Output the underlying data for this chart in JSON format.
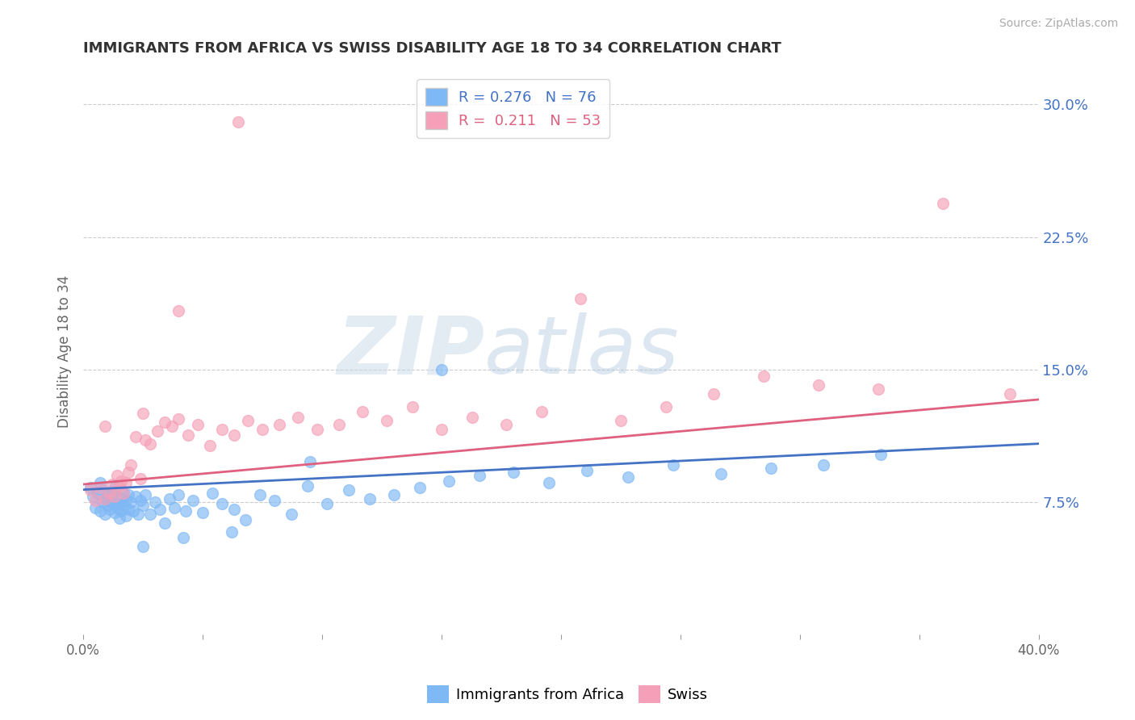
{
  "title": "IMMIGRANTS FROM AFRICA VS SWISS DISABILITY AGE 18 TO 34 CORRELATION CHART",
  "source": "Source: ZipAtlas.com",
  "ylabel": "Disability Age 18 to 34",
  "xlim": [
    0.0,
    0.4
  ],
  "ylim": [
    0.0,
    0.32
  ],
  "xticks": [
    0.0,
    0.05,
    0.1,
    0.15,
    0.2,
    0.25,
    0.3,
    0.35,
    0.4
  ],
  "xticklabels": [
    "0.0%",
    "",
    "",
    "",
    "",
    "",
    "",
    "",
    "40.0%"
  ],
  "yticks": [
    0.075,
    0.15,
    0.225,
    0.3
  ],
  "yticklabels": [
    "7.5%",
    "15.0%",
    "22.5%",
    "30.0%"
  ],
  "blue_color": "#7EB8F5",
  "pink_color": "#F5A0B8",
  "blue_line_color": "#4472C4",
  "pink_line_color": "#E06080",
  "r_blue": 0.276,
  "n_blue": 76,
  "r_pink": 0.211,
  "n_pink": 53,
  "legend_label_blue": "Immigrants from Africa",
  "legend_label_pink": "Swiss",
  "watermark_zip": "ZIP",
  "watermark_atlas": "atlas",
  "background_color": "#FFFFFF",
  "grid_color": "#CCCCCC",
  "title_color": "#333333",
  "tick_label_color_blue": "#4472C4",
  "blue_scatter_x": [
    0.003,
    0.004,
    0.005,
    0.006,
    0.007,
    0.007,
    0.008,
    0.008,
    0.009,
    0.009,
    0.01,
    0.01,
    0.011,
    0.011,
    0.012,
    0.012,
    0.013,
    0.013,
    0.014,
    0.014,
    0.015,
    0.015,
    0.016,
    0.016,
    0.017,
    0.017,
    0.018,
    0.018,
    0.019,
    0.019,
    0.02,
    0.021,
    0.022,
    0.023,
    0.024,
    0.025,
    0.026,
    0.028,
    0.03,
    0.032,
    0.034,
    0.036,
    0.038,
    0.04,
    0.043,
    0.046,
    0.05,
    0.054,
    0.058,
    0.063,
    0.068,
    0.074,
    0.08,
    0.087,
    0.094,
    0.102,
    0.111,
    0.12,
    0.13,
    0.141,
    0.153,
    0.166,
    0.18,
    0.195,
    0.211,
    0.228,
    0.247,
    0.267,
    0.288,
    0.31,
    0.334,
    0.15,
    0.095,
    0.062,
    0.042,
    0.025
  ],
  "blue_scatter_y": [
    0.083,
    0.078,
    0.072,
    0.08,
    0.086,
    0.07,
    0.075,
    0.082,
    0.068,
    0.077,
    0.073,
    0.079,
    0.071,
    0.076,
    0.074,
    0.08,
    0.069,
    0.083,
    0.072,
    0.078,
    0.066,
    0.074,
    0.07,
    0.077,
    0.073,
    0.08,
    0.067,
    0.076,
    0.071,
    0.079,
    0.075,
    0.07,
    0.078,
    0.068,
    0.076,
    0.073,
    0.079,
    0.068,
    0.075,
    0.071,
    0.063,
    0.077,
    0.072,
    0.079,
    0.07,
    0.076,
    0.069,
    0.08,
    0.074,
    0.071,
    0.065,
    0.079,
    0.076,
    0.068,
    0.084,
    0.074,
    0.082,
    0.077,
    0.079,
    0.083,
    0.087,
    0.09,
    0.092,
    0.086,
    0.093,
    0.089,
    0.096,
    0.091,
    0.094,
    0.096,
    0.102,
    0.15,
    0.098,
    0.058,
    0.055,
    0.05
  ],
  "pink_scatter_x": [
    0.003,
    0.005,
    0.007,
    0.009,
    0.011,
    0.012,
    0.013,
    0.014,
    0.015,
    0.016,
    0.017,
    0.018,
    0.019,
    0.02,
    0.022,
    0.024,
    0.026,
    0.028,
    0.031,
    0.034,
    0.037,
    0.04,
    0.044,
    0.048,
    0.053,
    0.058,
    0.063,
    0.069,
    0.075,
    0.082,
    0.09,
    0.098,
    0.107,
    0.117,
    0.127,
    0.138,
    0.15,
    0.163,
    0.177,
    0.192,
    0.208,
    0.225,
    0.244,
    0.264,
    0.285,
    0.308,
    0.333,
    0.36,
    0.388,
    0.025,
    0.009,
    0.04,
    0.065
  ],
  "pink_scatter_y": [
    0.082,
    0.076,
    0.083,
    0.077,
    0.08,
    0.085,
    0.078,
    0.09,
    0.084,
    0.087,
    0.08,
    0.086,
    0.092,
    0.096,
    0.112,
    0.088,
    0.11,
    0.108,
    0.115,
    0.12,
    0.118,
    0.122,
    0.113,
    0.119,
    0.107,
    0.116,
    0.113,
    0.121,
    0.116,
    0.119,
    0.123,
    0.116,
    0.119,
    0.126,
    0.121,
    0.129,
    0.116,
    0.123,
    0.119,
    0.126,
    0.19,
    0.121,
    0.129,
    0.136,
    0.146,
    0.141,
    0.139,
    0.244,
    0.136,
    0.125,
    0.118,
    0.183,
    0.29
  ]
}
